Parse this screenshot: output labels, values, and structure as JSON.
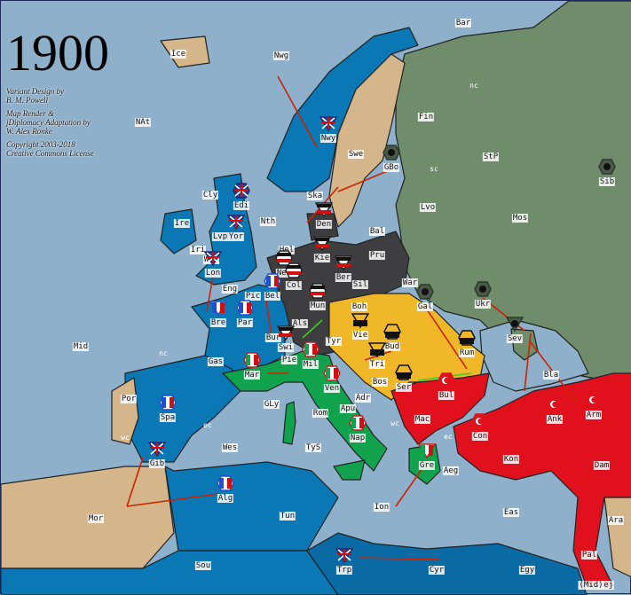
{
  "title": "1900",
  "credits": [
    "Variant Design by",
    "B. M. Powell",
    "Map Render &",
    "jDiplomacy Adaptation by",
    "W. Alex Ronke",
    "Copyright 2003-2018",
    "Creative Commons License"
  ],
  "colors": {
    "sea": "#8eb0cb",
    "britain_france": "#0a78b4",
    "germany": "#3e3e40",
    "austria": "#f0b829",
    "italy": "#10a24c",
    "turkey": "#e0101c",
    "russia": "#6f8c6b",
    "neutral": "#d5b68a",
    "order_arrow": "#cc2200",
    "support_arrow": "#44cc22"
  },
  "provinces": [
    "Bar",
    "Ice",
    "Nwg",
    "nc",
    "NAt",
    "Nwy",
    "Fin",
    "StP",
    "Sib",
    "Swe",
    "GBo",
    "sc",
    "Cly",
    "Edi",
    "Ska",
    "Den",
    "Mos",
    "Nth",
    "Ire",
    "Lvo",
    "Lvp",
    "Yor",
    "Bal",
    "Hel",
    "Kie",
    "Pru",
    "Iri",
    "Wal",
    "Lon",
    "Net",
    "Ber",
    "Sil",
    "Eng",
    "Col",
    "War",
    "Pic",
    "Bel",
    "Gal",
    "Ukr",
    "Boh",
    "Bre",
    "Mun",
    "Par",
    "Als",
    "Sev",
    "Vie",
    "Bud",
    "Tyr",
    "Bur",
    "Swi",
    "Mid",
    "Rum",
    "Tri",
    "Pie",
    "Mil",
    "Gas",
    "nc",
    "Bla",
    "Bos",
    "Ser",
    "Mar",
    "Ven",
    "Bul",
    "Por",
    "Spa",
    "Adr",
    "Mac",
    "Ank",
    "Arm",
    "GLy",
    "Rom",
    "Apu",
    "wc",
    "ec",
    "Con",
    "Kon",
    "Aeg",
    "Gre",
    "Dam",
    "Nap",
    "TyS",
    "ec",
    "wc",
    "Wes",
    "Gib",
    "Ion",
    "Mor",
    "Alg",
    "Tun",
    "Eas",
    "Ara",
    "Pal",
    "Sou",
    "Trp",
    "Cyr",
    "Egy",
    "Hej",
    "(Mid)"
  ],
  "units": [
    {
      "power": "britain",
      "type": "fleet",
      "at": "Nwy"
    },
    {
      "power": "britain",
      "type": "army",
      "at": "Edi"
    },
    {
      "power": "britain",
      "type": "fleet",
      "at": "Yor"
    },
    {
      "power": "britain",
      "type": "fleet",
      "at": "Lon"
    },
    {
      "power": "britain",
      "type": "fleet",
      "at": "Gib"
    },
    {
      "power": "britain",
      "type": "fleet",
      "at": "Trp"
    },
    {
      "power": "france",
      "type": "fleet",
      "at": "Bre"
    },
    {
      "power": "france",
      "type": "army",
      "at": "Par"
    },
    {
      "power": "france",
      "type": "army",
      "at": "Bel"
    },
    {
      "power": "france",
      "type": "army",
      "at": "Spa"
    },
    {
      "power": "france",
      "type": "army",
      "at": "Alg"
    },
    {
      "power": "germany",
      "type": "fleet",
      "at": "Den"
    },
    {
      "power": "germany",
      "type": "army",
      "at": "Net"
    },
    {
      "power": "germany",
      "type": "fleet",
      "at": "Kie"
    },
    {
      "power": "germany",
      "type": "fleet",
      "at": "Ber"
    },
    {
      "power": "germany",
      "type": "army",
      "at": "Col"
    },
    {
      "power": "germany",
      "type": "army",
      "at": "Mun"
    },
    {
      "power": "germany",
      "type": "fleet",
      "at": "Swi"
    },
    {
      "power": "austria",
      "type": "fleet",
      "at": "Vie"
    },
    {
      "power": "austria",
      "type": "army",
      "at": "Bud"
    },
    {
      "power": "austria",
      "type": "fleet",
      "at": "Tri"
    },
    {
      "power": "austria",
      "type": "army",
      "at": "Ser"
    },
    {
      "power": "austria",
      "type": "army",
      "at": "Rum"
    },
    {
      "power": "italy",
      "type": "army",
      "at": "Mar"
    },
    {
      "power": "italy",
      "type": "army",
      "at": "Mil"
    },
    {
      "power": "italy",
      "type": "army",
      "at": "Ven"
    },
    {
      "power": "italy",
      "type": "army",
      "at": "Nap"
    },
    {
      "power": "italy",
      "type": "fleet",
      "at": "Gre"
    },
    {
      "power": "turkey",
      "type": "army",
      "at": "Bul"
    },
    {
      "power": "turkey",
      "type": "army",
      "at": "Con"
    },
    {
      "power": "turkey",
      "type": "fleet",
      "at": "Ank"
    },
    {
      "power": "turkey",
      "type": "army",
      "at": "Arm"
    },
    {
      "power": "russia",
      "type": "army",
      "at": "GBo"
    },
    {
      "power": "russia",
      "type": "army",
      "at": "Ukr"
    },
    {
      "power": "russia",
      "type": "army",
      "at": "Gal"
    },
    {
      "power": "russia",
      "type": "fleet",
      "at": "Sev"
    },
    {
      "power": "russia",
      "type": "army",
      "at": "Sib"
    }
  ]
}
